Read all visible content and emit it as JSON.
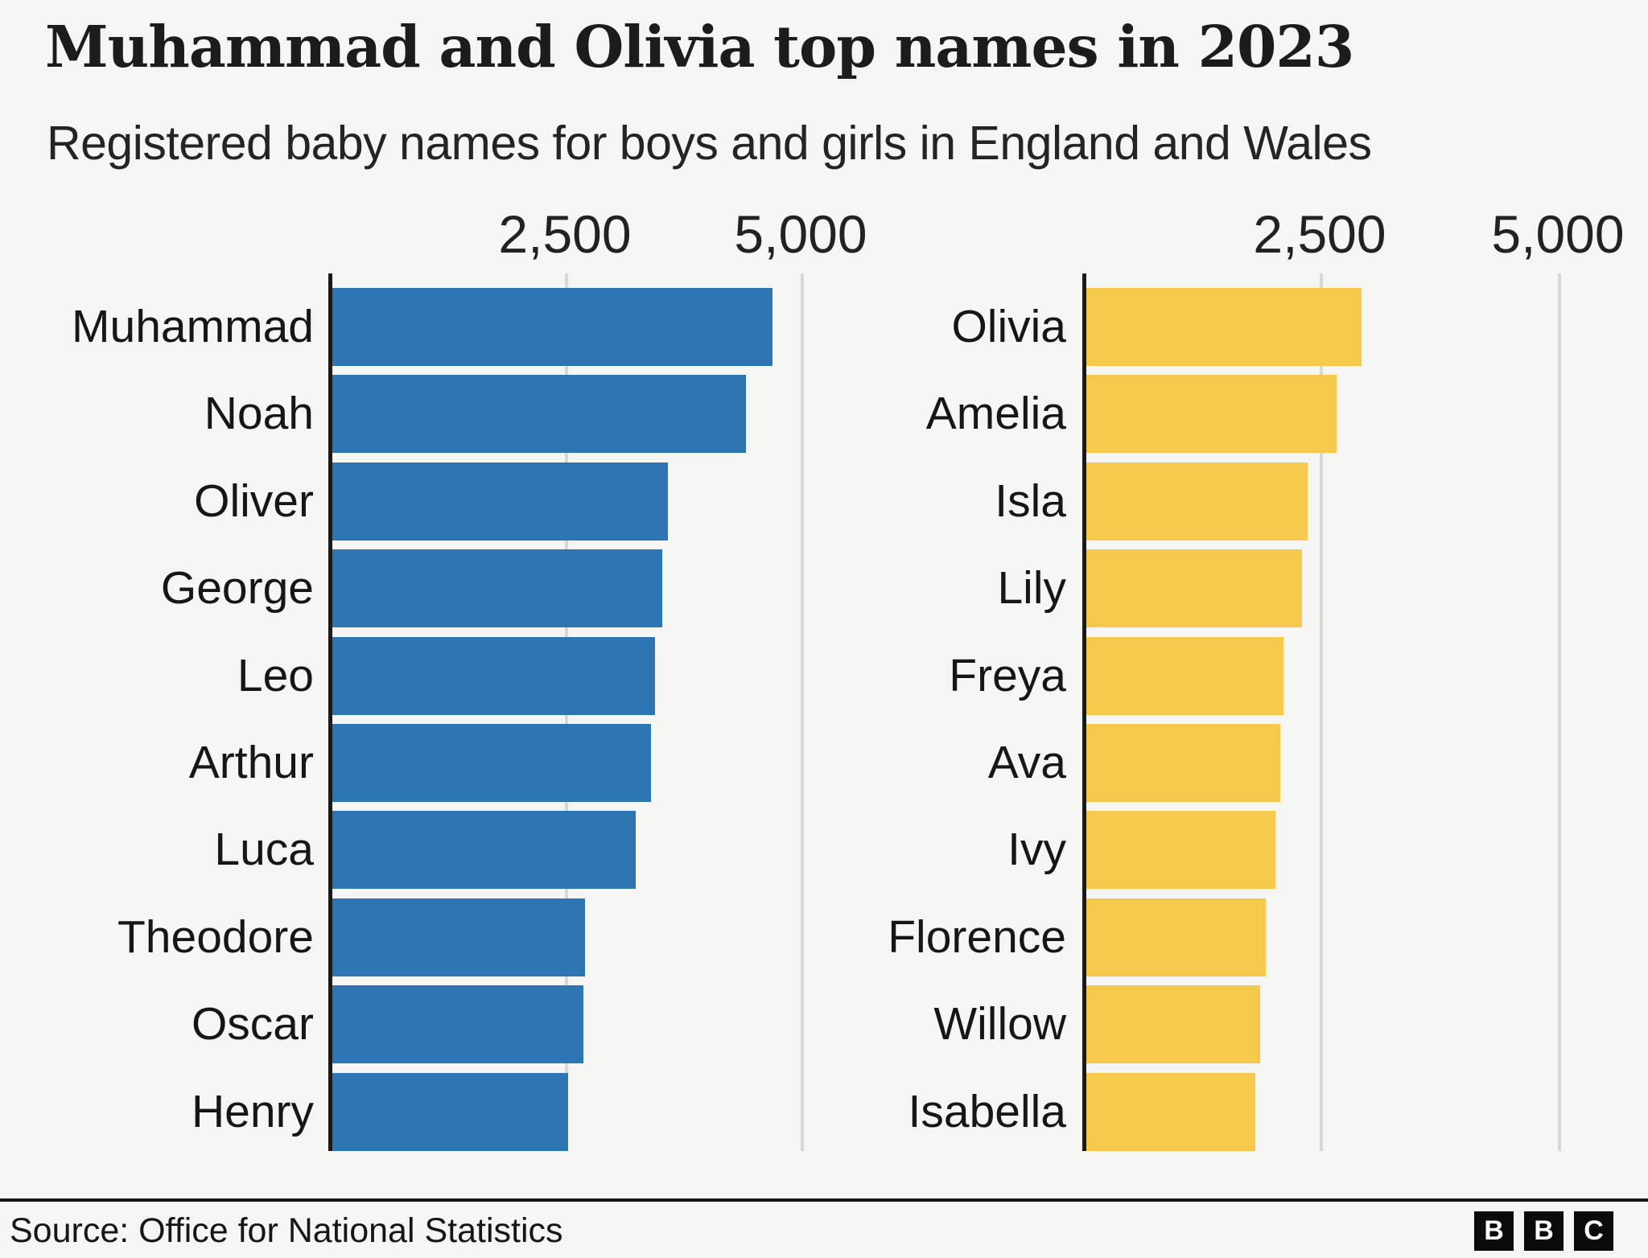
{
  "header": {
    "title": "Muhammad and Olivia top names in 2023",
    "subtitle": "Registered baby names for boys and girls in England and Wales"
  },
  "chart_data": {
    "type": "bar",
    "orientation": "horizontal",
    "title": "Muhammad and Olivia top names in 2023",
    "subtitle": "Registered baby names for boys and girls in England and Wales",
    "x_ticks": [
      2500,
      5000
    ],
    "x_tick_labels": [
      "2,500",
      "5,000"
    ],
    "xlim": [
      0,
      5600
    ],
    "grid": "vertical gridlines at ticks, drawn behind bars",
    "legend_position": "none",
    "series": [
      {
        "name": "Boys",
        "color": "#2e75b4",
        "categories": [
          "Muhammad",
          "Noah",
          "Oliver",
          "George",
          "Leo",
          "Arthur",
          "Luca",
          "Theodore",
          "Oscar",
          "Henry"
        ],
        "values": [
          4661,
          4382,
          3556,
          3494,
          3417,
          3376,
          3211,
          2676,
          2654,
          2494
        ]
      },
      {
        "name": "Girls",
        "color": "#f6c84b",
        "categories": [
          "Olivia",
          "Amelia",
          "Isla",
          "Lily",
          "Freya",
          "Ava",
          "Ivy",
          "Florence",
          "Willow",
          "Isabella"
        ],
        "values": [
          2895,
          2634,
          2327,
          2270,
          2070,
          2040,
          1990,
          1890,
          1830,
          1780
        ]
      }
    ]
  },
  "footer": {
    "source": "Source: Office for National Statistics",
    "logo_letters": [
      "B",
      "B",
      "C"
    ]
  },
  "colors": {
    "background": "#f5f5f3",
    "boys_bar": "#2e75b4",
    "girls_bar": "#f6c84b",
    "gridline": "#d7d7d5",
    "axis": "#1a1a1a",
    "text": "#161616"
  }
}
